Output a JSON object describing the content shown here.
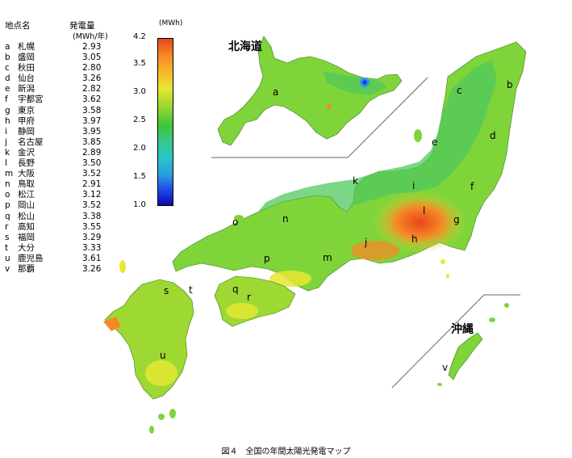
{
  "legend": {
    "header_site": "地点名",
    "header_value": "発電量",
    "unit": "(MWh/年)",
    "items": [
      {
        "letter": "a",
        "name": "札幌",
        "value": "2.93"
      },
      {
        "letter": "b",
        "name": "盛岡",
        "value": "3.05"
      },
      {
        "letter": "c",
        "name": "秋田",
        "value": "2.80"
      },
      {
        "letter": "d",
        "name": "仙台",
        "value": "3.26"
      },
      {
        "letter": "e",
        "name": "新潟",
        "value": "2.82"
      },
      {
        "letter": "f",
        "name": "宇都宮",
        "value": "3.62"
      },
      {
        "letter": "g",
        "name": "東京",
        "value": "3.58"
      },
      {
        "letter": "h",
        "name": "甲府",
        "value": "3.97"
      },
      {
        "letter": "i",
        "name": "静岡",
        "value": "3.95"
      },
      {
        "letter": "j",
        "name": "名古屋",
        "value": "3.85"
      },
      {
        "letter": "k",
        "name": "金沢",
        "value": "2.89"
      },
      {
        "letter": "l",
        "name": "長野",
        "value": "3.50"
      },
      {
        "letter": "m",
        "name": "大阪",
        "value": "3.52"
      },
      {
        "letter": "n",
        "name": "鳥取",
        "value": "2.91"
      },
      {
        "letter": "o",
        "name": "松江",
        "value": "3.12"
      },
      {
        "letter": "p",
        "name": "岡山",
        "value": "3.52"
      },
      {
        "letter": "q",
        "name": "松山",
        "value": "3.38"
      },
      {
        "letter": "r",
        "name": "高知",
        "value": "3.55"
      },
      {
        "letter": "s",
        "name": "福岡",
        "value": "3.29"
      },
      {
        "letter": "t",
        "name": "大分",
        "value": "3.33"
      },
      {
        "letter": "u",
        "name": "鹿児島",
        "value": "3.61"
      },
      {
        "letter": "v",
        "name": "那覇",
        "value": "3.26"
      }
    ]
  },
  "colorbar": {
    "unit": "(MWh)",
    "ticks": [
      "4.2",
      "3.5",
      "3.0",
      "2.5",
      "2.0",
      "1.5",
      "1.0"
    ]
  },
  "regions": {
    "hokkaido": "北海道",
    "okinawa": "沖縄"
  },
  "map_letters": {
    "a": "a",
    "b": "b",
    "c": "c",
    "d": "d",
    "e": "e",
    "f": "f",
    "g": "g",
    "h": "h",
    "i": "i",
    "j": "j",
    "k": "k",
    "l": "l",
    "m": "m",
    "n": "n",
    "o": "o",
    "p": "p",
    "q": "q",
    "r": "r",
    "s": "s",
    "t": "t",
    "u": "u",
    "v": "v"
  },
  "caption": "図４　全国の年間太陽光発電マップ",
  "colors": {
    "low": "#0a0aa8",
    "mid": "#3fc636",
    "high": "#e8461b",
    "land_base": "#7fd43a"
  }
}
